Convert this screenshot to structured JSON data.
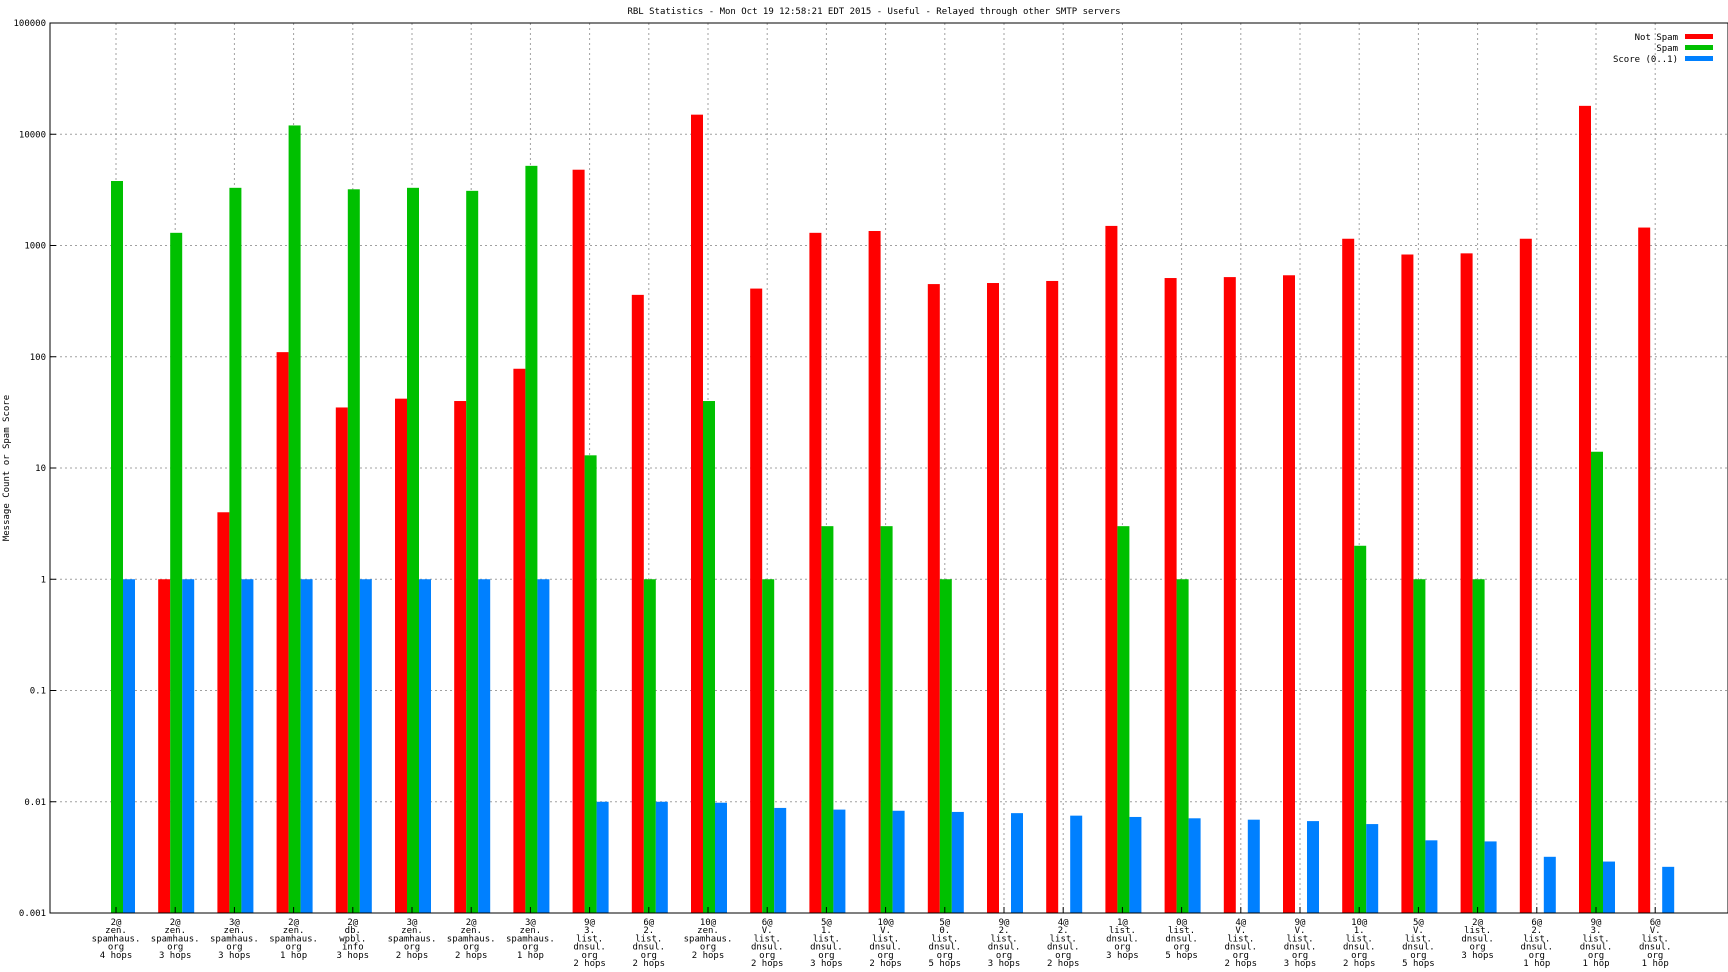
{
  "chart_data": {
    "type": "bar",
    "title": "RBL Statistics - Mon Oct 19 12:58:21 EDT 2015 - Useful - Relayed through other SMTP servers",
    "ylabel": "Message Count or Spam Score",
    "xlabel": "",
    "yscale": "log",
    "ylim": [
      0.001,
      100000
    ],
    "yticks": [
      "0.001",
      "0.01",
      "0.1",
      "1",
      "10",
      "100",
      "1000",
      "10000",
      "100000"
    ],
    "grid": true,
    "legend_position": "top-right",
    "categories": [
      "2@\nzen.\nspamhaus.\norg\n4 hops",
      "2@\nzen.\nspamhaus.\norg\n3 hops",
      "3@\nzen.\nspamhaus.\norg\n3 hops",
      "2@\nzen.\nspamhaus.\norg\n1 hop",
      "2@\ndb.\nwpbl.\ninfo\n3 hops",
      "3@\nzen.\nspamhaus.\norg\n2 hops",
      "2@\nzen.\nspamhaus.\norg\n2 hops",
      "3@\nzen.\nspamhaus.\norg\n1 hop",
      "9@\n3.\nlist.\ndnsul.\norg\n2 hops",
      "6@\n2.\nlist.\ndnsul.\norg\n2 hops",
      "10@\nzen.\nspamhaus.\norg\n2 hops",
      "6@\nV.\nlist.\ndnsul.\norg\n2 hops",
      "5@\n1.\nlist.\ndnsul.\norg\n3 hops",
      "10@\nV.\nlist.\ndnsul.\norg\n2 hops",
      "5@\n0.\nlist.\ndnsul.\norg\n5 hops",
      "9@\n2.\nlist.\ndnsul.\norg\n3 hops",
      "4@\n2.\nlist.\ndnsul.\norg\n2 hops",
      "1@\nlist.\ndnsul.\norg\n3 hops",
      "0@\nlist.\ndnsul.\norg\n5 hops",
      "4@\nV.\nlist.\ndnsul.\norg\n2 hops",
      "9@\nV.\nlist.\ndnsul.\norg\n3 hops",
      "10@\n1.\nlist.\ndnsul.\norg\n2 hops",
      "5@\nV.\nlist.\ndnsul.\norg\n5 hops",
      "2@\nlist.\ndnsul.\norg\n3 hops",
      "6@\n2.\nlist.\ndnsul.\norg\n1 hop",
      "9@\n3.\nlist.\ndnsul.\norg\n1 hop",
      "6@\nV.\nlist.\ndnsul.\norg\n1 hop"
    ],
    "series": [
      {
        "name": "Not Spam",
        "color": "#ff0000",
        "values": [
          0,
          1,
          4,
          110,
          35,
          42,
          40,
          78,
          4800,
          360,
          15000,
          410,
          1300,
          1350,
          450,
          460,
          480,
          1500,
          510,
          520,
          540,
          1150,
          830,
          850,
          1150,
          18000,
          1450
        ]
      },
      {
        "name": "Spam",
        "color": "#00c000",
        "values": [
          3800,
          1300,
          3300,
          12000,
          3200,
          3300,
          3100,
          5200,
          13,
          1,
          40,
          1,
          3,
          3,
          1,
          0,
          0,
          3,
          1,
          0,
          0,
          2,
          1,
          1,
          0,
          14,
          0
        ]
      },
      {
        "name": "Score (0..1)",
        "color": "#0080ff",
        "values": [
          1,
          1,
          1,
          1,
          1,
          1,
          1,
          1,
          0.01,
          0.01,
          0.0098,
          0.0088,
          0.0085,
          0.0083,
          0.0081,
          0.0079,
          0.0075,
          0.0073,
          0.0071,
          0.0069,
          0.0067,
          0.0063,
          0.0045,
          0.0044,
          0.0032,
          0.0029,
          0.0026
        ]
      }
    ]
  }
}
